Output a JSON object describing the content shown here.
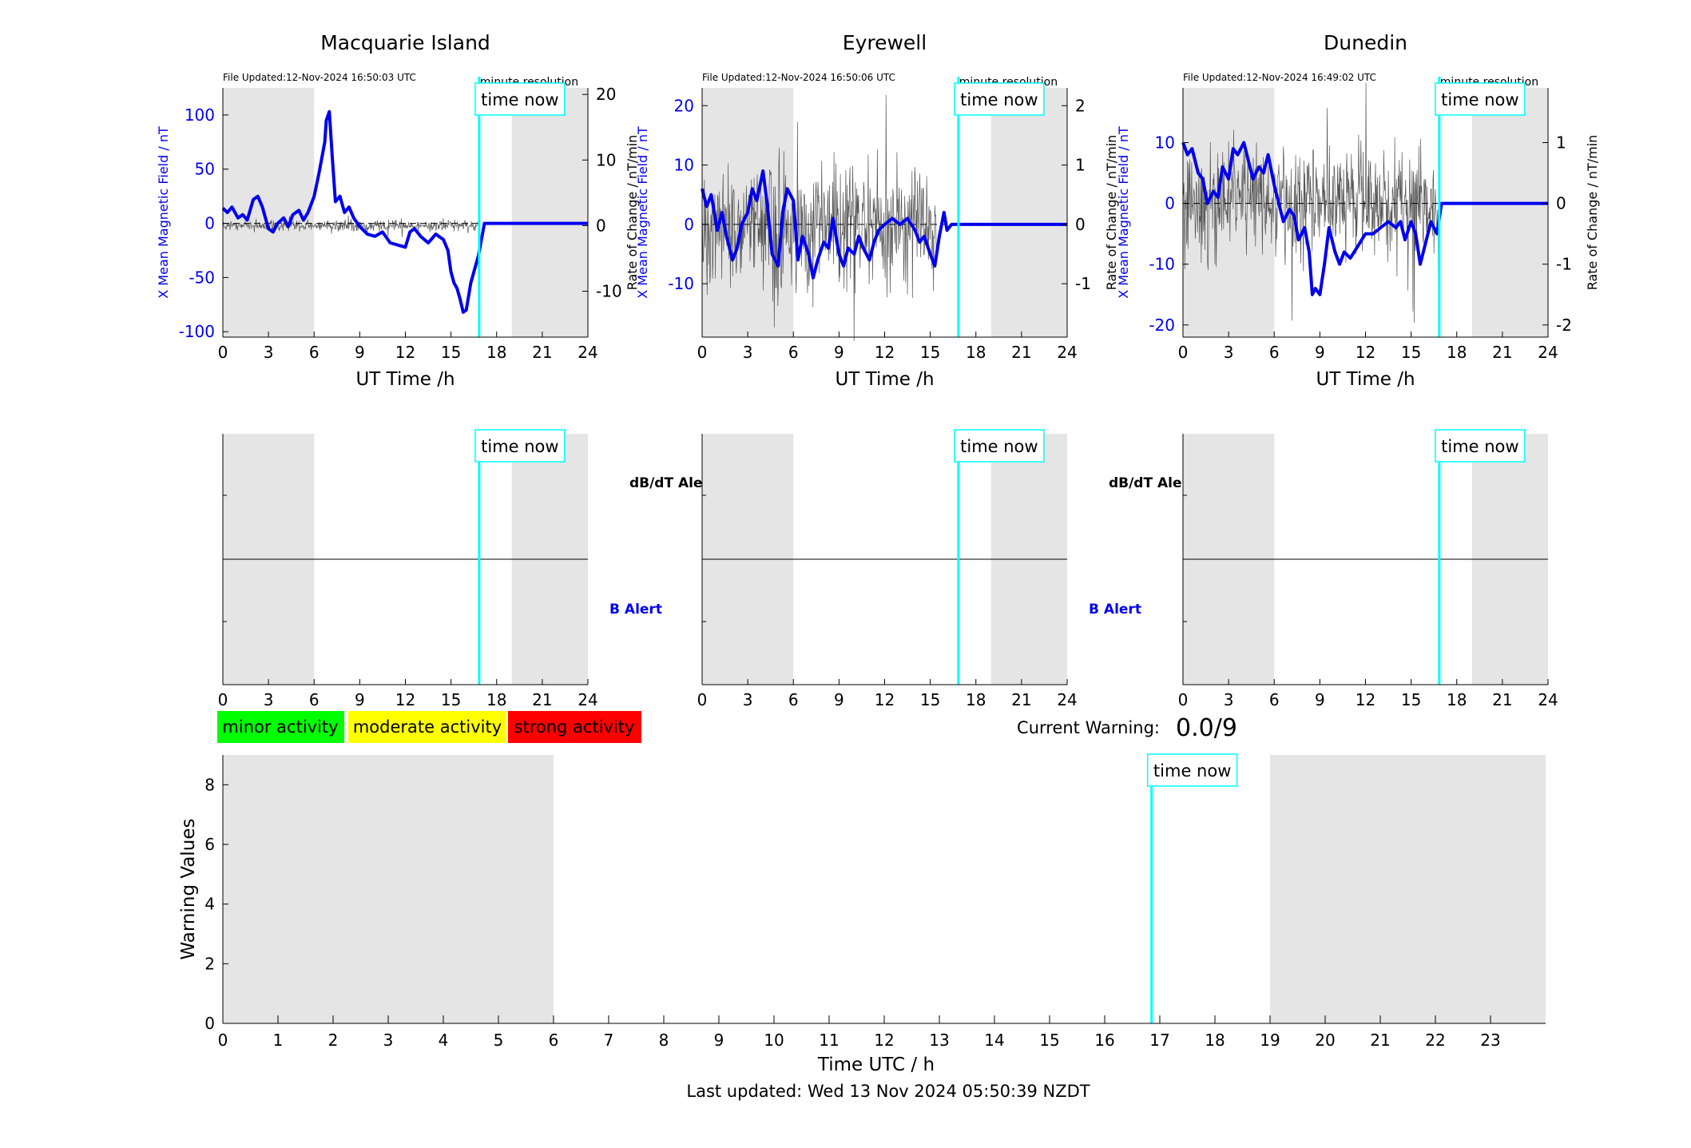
{
  "figure": {
    "last_updated": "Last updated: Wed 13 Nov 2024 05:50:39 NZDT",
    "current_warning_label": "Current Warning:",
    "current_warning_value": "0.0/9",
    "time_now_label": "time now",
    "time_now_hour": 16.85,
    "legend": [
      {
        "label": "minor activity",
        "color": "#00ff00"
      },
      {
        "label": "moderate activity",
        "color": "#ffff00"
      },
      {
        "label": "strong activity",
        "color": "#ff0000"
      }
    ],
    "colors": {
      "field": "#0000ee",
      "rate": "#555555",
      "time_now": "#00ffff",
      "night": "#e5e5e5",
      "b_alert": "#0000ee"
    }
  },
  "stations": [
    {
      "name": "Macquarie Island",
      "file_updated": "File Updated:12-Nov-2024 16:50:03 UTC",
      "resolution": "minute resolution",
      "ylabel_left": "X Mean Magnetic Field / nT",
      "ylabel_right": "Rate of Change / nT/min",
      "xlabel": "UT Time /h",
      "ylim_left": [
        -105,
        125
      ],
      "yticks_left": [
        -100,
        -50,
        0,
        50,
        100
      ],
      "ylim_right": [
        -17,
        21
      ],
      "yticks_right": [
        -10,
        0,
        10,
        20
      ],
      "rate_scale": 0.18,
      "dbdt_alert_label": "dB/dT Alert",
      "b_alert_label": "B Alert",
      "field_x": [
        0,
        0.3,
        0.6,
        1.0,
        1.3,
        1.6,
        2.0,
        2.3,
        2.6,
        3.0,
        3.3,
        3.6,
        4.0,
        4.3,
        4.6,
        5.0,
        5.3,
        5.6,
        6.0,
        6.3,
        6.5,
        6.7,
        6.8,
        7.0,
        7.2,
        7.4,
        7.7,
        8.0,
        8.3,
        8.6,
        9.0,
        9.5,
        10.0,
        10.5,
        11.0,
        11.5,
        12.0,
        12.3,
        12.6,
        13.0,
        13.5,
        14.0,
        14.5,
        14.8,
        15.0,
        15.2,
        15.4,
        15.6,
        15.8,
        16.0,
        16.3,
        16.5,
        16.8,
        17.2,
        24
      ],
      "field_y": [
        14,
        10,
        15,
        5,
        8,
        3,
        22,
        25,
        15,
        -5,
        -8,
        0,
        5,
        -3,
        8,
        12,
        3,
        10,
        25,
        45,
        60,
        75,
        95,
        103,
        60,
        20,
        25,
        10,
        15,
        5,
        -3,
        -10,
        -12,
        -8,
        -18,
        -20,
        -22,
        -8,
        -5,
        -12,
        -18,
        -10,
        -15,
        -25,
        -45,
        -55,
        -60,
        -70,
        -82,
        -80,
        -55,
        -45,
        -30,
        0,
        0
      ]
    },
    {
      "name": "Eyrewell",
      "file_updated": "File Updated:12-Nov-2024 16:50:06 UTC",
      "resolution": "minute resolution",
      "ylabel_left": "X Mean Magnetic Field / nT",
      "ylabel_right": "Rate of Change / nT/min",
      "xlabel": "UT Time /h",
      "ylim_left": [
        -19,
        23
      ],
      "yticks_left": [
        -10,
        0,
        10,
        20
      ],
      "ylim_right": [
        -1.9,
        2.3
      ],
      "yticks_right": [
        -1,
        0,
        1,
        2
      ],
      "rate_scale": 1.2,
      "dbdt_alert_label": "dB/dT Alert",
      "b_alert_label": "B Alert",
      "field_x": [
        0,
        0.3,
        0.6,
        1.0,
        1.3,
        1.6,
        2.0,
        2.3,
        2.6,
        3.0,
        3.3,
        3.6,
        4.0,
        4.3,
        4.6,
        5.0,
        5.3,
        5.6,
        6.0,
        6.3,
        6.6,
        7.0,
        7.3,
        7.6,
        8.0,
        8.3,
        8.6,
        9.0,
        9.3,
        9.6,
        10.0,
        10.3,
        10.6,
        11.0,
        11.3,
        11.6,
        12.0,
        12.5,
        13.0,
        13.5,
        14.0,
        14.3,
        14.6,
        15.0,
        15.3,
        15.6,
        15.9,
        16.1,
        16.4,
        16.7,
        24
      ],
      "field_y": [
        6,
        3,
        5,
        -1,
        2,
        -2,
        -6,
        -4,
        0,
        2,
        6,
        4,
        9,
        3,
        -5,
        -7,
        2,
        6,
        4,
        -6,
        -2,
        -5,
        -9,
        -6,
        -3,
        -4,
        1,
        -5,
        -7,
        -4,
        -5,
        -2,
        -4,
        -6,
        -3,
        -1,
        0,
        1,
        0,
        1,
        -1,
        -3,
        -2,
        -5,
        -7,
        -2,
        2,
        -1,
        0,
        0,
        0
      ]
    },
    {
      "name": "Dunedin",
      "file_updated": "File Updated:12-Nov-2024 16:49:02 UTC",
      "resolution": "minute resolution",
      "ylabel_left": "X Mean Magnetic Field / nT",
      "ylabel_right": "Rate of Change / nT/min",
      "xlabel": "UT Time /h",
      "ylim_left": [
        -22,
        19
      ],
      "yticks_left": [
        -20,
        -10,
        0,
        10
      ],
      "ylim_right": [
        -2.2,
        1.9
      ],
      "yticks_right": [
        -2,
        -1,
        0,
        1
      ],
      "rate_scale": 1.0,
      "dbdt_alert_label": "dB/dT Alert",
      "b_alert_label": "B Alert",
      "field_x": [
        0,
        0.3,
        0.6,
        1.0,
        1.3,
        1.6,
        2.0,
        2.3,
        2.6,
        3.0,
        3.3,
        3.6,
        4.0,
        4.3,
        4.6,
        5.0,
        5.3,
        5.6,
        6.0,
        6.3,
        6.6,
        7.0,
        7.3,
        7.6,
        8.0,
        8.3,
        8.5,
        8.7,
        9.0,
        9.3,
        9.6,
        10.0,
        10.3,
        10.6,
        11.0,
        11.5,
        12.0,
        12.5,
        13.0,
        13.5,
        14.0,
        14.3,
        14.6,
        15.0,
        15.3,
        15.6,
        16.0,
        16.3,
        16.7,
        17.0,
        24
      ],
      "field_y": [
        10,
        8,
        9,
        5,
        4,
        0,
        2,
        1,
        6,
        4,
        9,
        8,
        10,
        7,
        4,
        6,
        5,
        8,
        3,
        0,
        -3,
        -1,
        -2,
        -6,
        -4,
        -8,
        -15,
        -14,
        -15,
        -10,
        -4,
        -8,
        -10,
        -8,
        -9,
        -7,
        -5,
        -5,
        -4,
        -3,
        -4,
        -3,
        -6,
        -3,
        -5,
        -10,
        -6,
        -3,
        -5,
        0,
        0
      ]
    }
  ],
  "warning_panel": {
    "ylabel": "Warning Values",
    "xlabel": "Time UTC / h",
    "ylim": [
      0,
      9
    ],
    "yticks": [
      0,
      2,
      4,
      6,
      8
    ],
    "xlim": [
      0,
      24
    ],
    "xticks": [
      0,
      1,
      2,
      3,
      4,
      5,
      6,
      7,
      8,
      9,
      10,
      11,
      12,
      13,
      14,
      15,
      16,
      17,
      18,
      19,
      20,
      21,
      22,
      23
    ]
  }
}
